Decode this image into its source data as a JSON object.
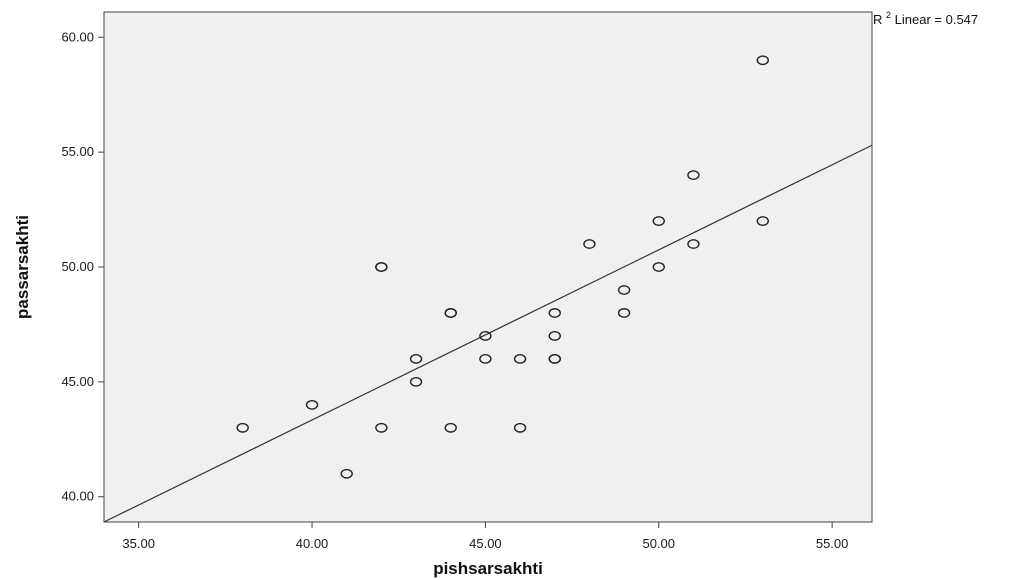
{
  "chart_data": {
    "type": "scatter",
    "title": "",
    "xlabel": "pishsarsakhti",
    "ylabel": "passarsakhti",
    "xlim": [
      34,
      56.15
    ],
    "ylim": [
      38.9,
      61.1
    ],
    "xticks": [
      "35.00",
      "40.00",
      "45.00",
      "50.00",
      "55.00"
    ],
    "xtick_values": [
      35,
      40,
      45,
      50,
      55
    ],
    "yticks": [
      "40.00",
      "45.00",
      "50.00",
      "55.00",
      "60.00"
    ],
    "ytick_values": [
      40,
      45,
      50,
      55,
      60
    ],
    "grid": false,
    "points": [
      {
        "x": 38,
        "y": 43
      },
      {
        "x": 40,
        "y": 44
      },
      {
        "x": 41,
        "y": 41
      },
      {
        "x": 42,
        "y": 43
      },
      {
        "x": 42,
        "y": 50
      },
      {
        "x": 42,
        "y": 50
      },
      {
        "x": 43,
        "y": 45
      },
      {
        "x": 43,
        "y": 46
      },
      {
        "x": 44,
        "y": 43
      },
      {
        "x": 44,
        "y": 48
      },
      {
        "x": 44,
        "y": 48
      },
      {
        "x": 45,
        "y": 46
      },
      {
        "x": 45,
        "y": 47
      },
      {
        "x": 46,
        "y": 43
      },
      {
        "x": 46,
        "y": 46
      },
      {
        "x": 47,
        "y": 46
      },
      {
        "x": 47,
        "y": 46
      },
      {
        "x": 47,
        "y": 47
      },
      {
        "x": 47,
        "y": 48
      },
      {
        "x": 48,
        "y": 51
      },
      {
        "x": 49,
        "y": 48
      },
      {
        "x": 49,
        "y": 49
      },
      {
        "x": 50,
        "y": 50
      },
      {
        "x": 50,
        "y": 52
      },
      {
        "x": 51,
        "y": 51
      },
      {
        "x": 51,
        "y": 54
      },
      {
        "x": 53,
        "y": 52
      },
      {
        "x": 53,
        "y": 59
      }
    ],
    "fit_line": {
      "type": "linear",
      "start": {
        "x": 34,
        "y": 38.9
      },
      "end": {
        "x": 56.15,
        "y": 55.3
      }
    },
    "annotation": {
      "r_label": "R",
      "superscript": "2",
      "rest": " Linear = 0.547"
    }
  }
}
